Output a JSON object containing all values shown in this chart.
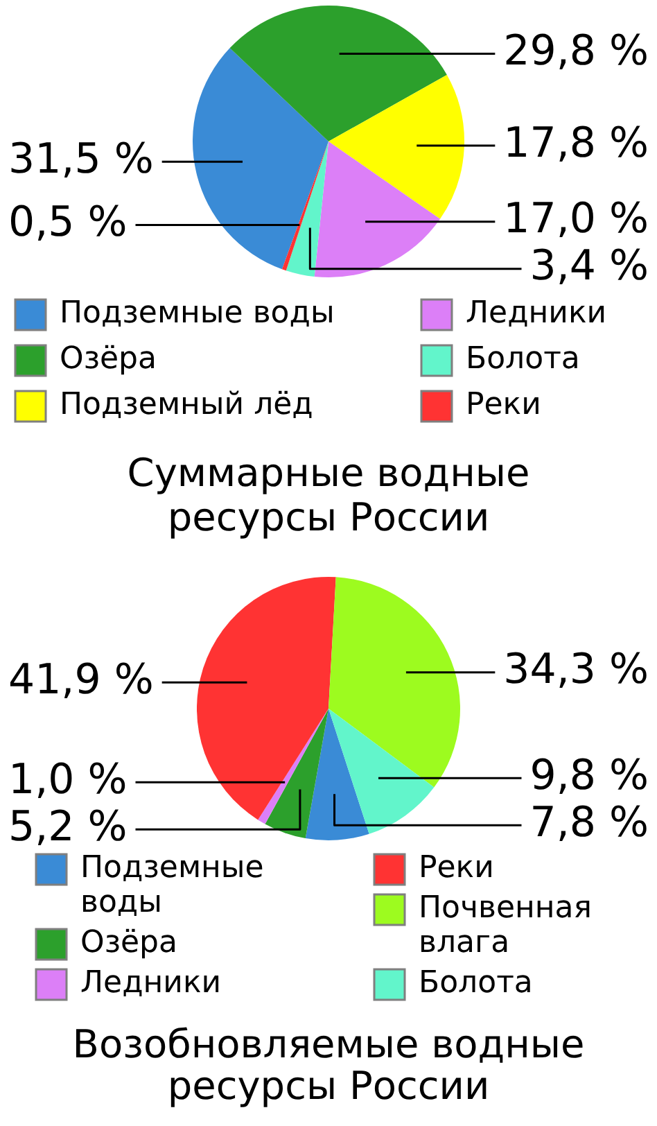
{
  "chart_data": [
    {
      "type": "pie",
      "title": "Суммарные водные ресурсы России",
      "categories": [
        "Подземные воды",
        "Озёра",
        "Подземный лёд",
        "Ледники",
        "Болота",
        "Реки"
      ],
      "values": [
        31.5,
        29.8,
        17.8,
        17.0,
        3.4,
        0.5
      ],
      "colors": [
        "#3a8bd6",
        "#2ca02c",
        "#ffff00",
        "#dc7ff7",
        "#62f5cb",
        "#ff3333"
      ],
      "value_labels": [
        "31,5 %",
        "29,8 %",
        "17,8 %",
        "17,0 %",
        "3,4 %",
        "0,5 %"
      ],
      "legend": "bottom"
    },
    {
      "type": "pie",
      "title": "Возобновляемые водные ресурсы России",
      "categories": [
        "Подземные воды",
        "Озёра",
        "Ледники",
        "Реки",
        "Почвенная влага",
        "Болота"
      ],
      "values": [
        7.8,
        5.2,
        1.0,
        41.9,
        34.3,
        9.8
      ],
      "colors": [
        "#3a8bd6",
        "#2ca02c",
        "#dc7ff7",
        "#ff3333",
        "#9dfb1f",
        "#62f5cb"
      ],
      "value_labels": [
        "7,8 %",
        "5,2 %",
        "1,0 %",
        "41,9 %",
        "34,3 %",
        "9,8 %"
      ],
      "legend": "bottom"
    }
  ]
}
